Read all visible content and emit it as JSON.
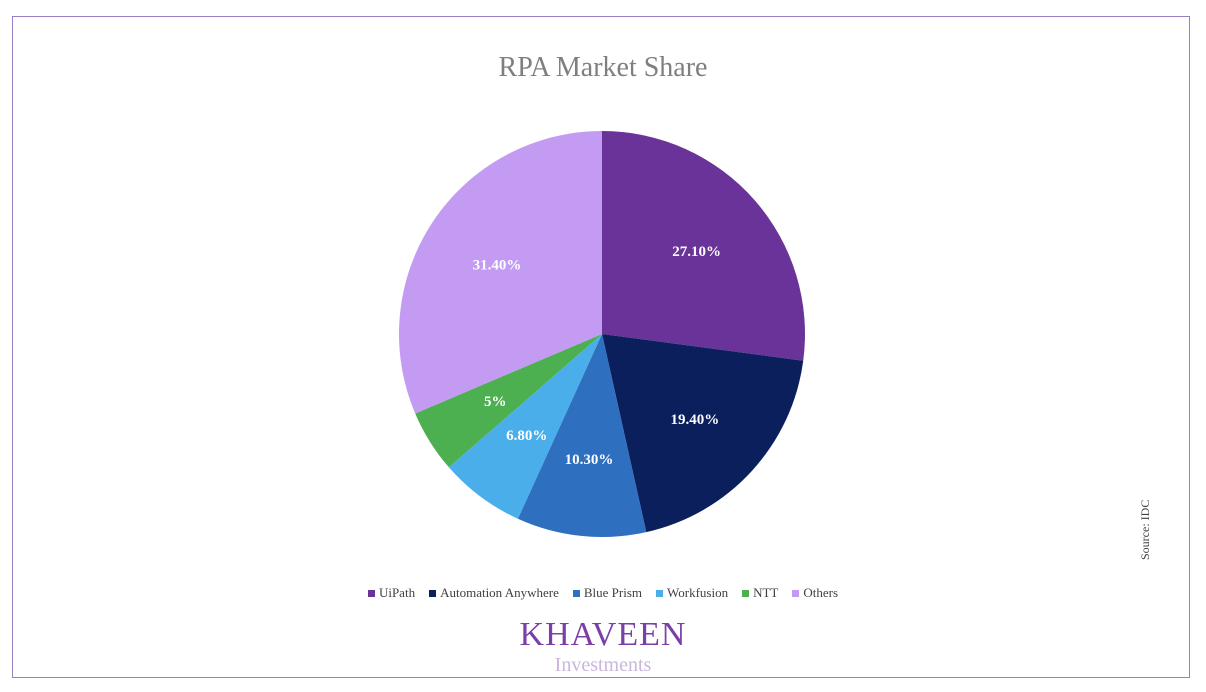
{
  "chart_data": {
    "type": "pie",
    "title": "RPA Market Share",
    "labels": [
      "UiPath",
      "Automation Anywhere",
      "Blue Prism",
      "Workfusion",
      "NTT",
      "Others"
    ],
    "values": [
      27.1,
      19.4,
      10.3,
      6.8,
      5,
      31.4
    ],
    "data_labels": [
      "27.10%",
      "19.40%",
      "10.30%",
      "6.80%",
      "5%",
      "31.40%"
    ],
    "colors": [
      "#6a3399",
      "#0b1f5c",
      "#2e6fc0",
      "#4aaeeb",
      "#4caf50",
      "#c49bf2"
    ],
    "legend_position": "bottom"
  },
  "source": "Source: IDC",
  "logo": {
    "name": "KHAVEEN",
    "sub": "Investments"
  }
}
